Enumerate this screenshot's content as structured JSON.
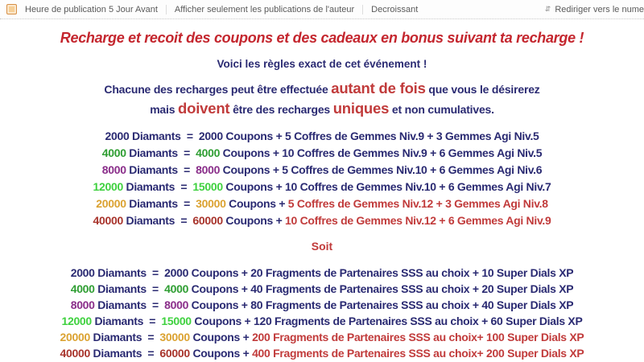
{
  "topbar": {
    "sort_time_label": "Heure de publication 5 Jour Avant",
    "filter_author_label": "Afficher seulement les publications de l'auteur",
    "sort_order_label": "Decroissant",
    "jump_label": "Rediriger vers le nume",
    "jump_icon_glyph": "⇵"
  },
  "post": {
    "title": "Recharge et recoit des coupons et des cadeaux en bonus suivant ta recharge !",
    "subtitle": "Voici les règles exact de cet événement !",
    "intro_line1": [
      {
        "t": "Chacune des recharges peut être effectuée ",
        "c": "navy"
      },
      {
        "t": "autant de fois",
        "c": "red",
        "big": true
      },
      {
        "t": " que vous le désirerez",
        "c": "navy"
      }
    ],
    "intro_line2": [
      {
        "t": "mais ",
        "c": "navy"
      },
      {
        "t": "doivent",
        "c": "red",
        "big": true
      },
      {
        "t": " être des recharges ",
        "c": "navy"
      },
      {
        "t": "uniques",
        "c": "red",
        "big": true
      },
      {
        "t": " et non cumulatives.",
        "c": "navy"
      }
    ],
    "soit_label": "Soit"
  },
  "labels": {
    "diamants_eq": " Diamants  =  ",
    "coupons_plus": " Coupons + "
  },
  "colors": {
    "navy": "#2a2a72",
    "red": "#c13b3b",
    "green": "#2f9e33",
    "purple": "#8a2e8a",
    "lime": "#3fd13f",
    "orange": "#dba231",
    "darkred": "#a8342c"
  },
  "list1": {
    "rows": [
      {
        "diamants": "2000",
        "coupons": "2000",
        "num_color": "navy",
        "reward": "5 Coffres de Gemmes Niv.9 + 3 Gemmes Agi Niv.5",
        "reward_color": "navy"
      },
      {
        "diamants": "4000",
        "coupons": "4000",
        "num_color": "green",
        "reward": "10 Coffres de Gemmes Niv.9 + 6 Gemmes Agi Niv.5",
        "reward_color": "navy"
      },
      {
        "diamants": "8000",
        "coupons": "8000",
        "num_color": "purple",
        "reward": "5 Coffres de Gemmes Niv.10 + 6 Gemmes Agi Niv.6",
        "reward_color": "navy"
      },
      {
        "diamants": "12000",
        "coupons": "15000",
        "num_color": "lime",
        "reward": "10 Coffres de Gemmes Niv.10 + 6 Gemmes Agi Niv.7",
        "reward_color": "navy"
      },
      {
        "diamants": "20000",
        "coupons": "30000",
        "num_color": "orange",
        "reward": "5 Coffres de Gemmes Niv.12 + 3 Gemmes Agi Niv.8",
        "reward_color": "red"
      },
      {
        "diamants": "40000",
        "coupons": "60000",
        "num_color": "darkred",
        "reward": "10 Coffres de Gemmes Niv.12 + 6 Gemmes Agi Niv.9",
        "reward_color": "red"
      }
    ]
  },
  "list2": {
    "rows": [
      {
        "diamants": "2000",
        "coupons": "2000",
        "num_color": "navy",
        "reward": "20 Fragments de Partenaires SSS au choix + 10 Super Dials XP",
        "reward_color": "navy"
      },
      {
        "diamants": "4000",
        "coupons": "4000",
        "num_color": "green",
        "reward": "40 Fragments de Partenaires SSS au choix + 20 Super Dials XP",
        "reward_color": "navy"
      },
      {
        "diamants": "8000",
        "coupons": "8000",
        "num_color": "purple",
        "reward": "80 Fragments de Partenaires SSS au choix + 40 Super Dials XP",
        "reward_color": "navy"
      },
      {
        "diamants": "12000",
        "coupons": "15000",
        "num_color": "lime",
        "reward": "120 Fragments de Partenaires SSS au choix + 60 Super Dials XP",
        "reward_color": "navy"
      },
      {
        "diamants": "20000",
        "coupons": "30000",
        "num_color": "orange",
        "reward": "200 Fragments de Partenaires SSS au choix+ 100 Super Dials XP",
        "reward_color": "red"
      },
      {
        "diamants": "40000",
        "coupons": "60000",
        "num_color": "darkred",
        "reward": "400 Fragments de Partenaires SSS au choix+ 200 Super Dials XP",
        "reward_color": "red"
      }
    ]
  }
}
